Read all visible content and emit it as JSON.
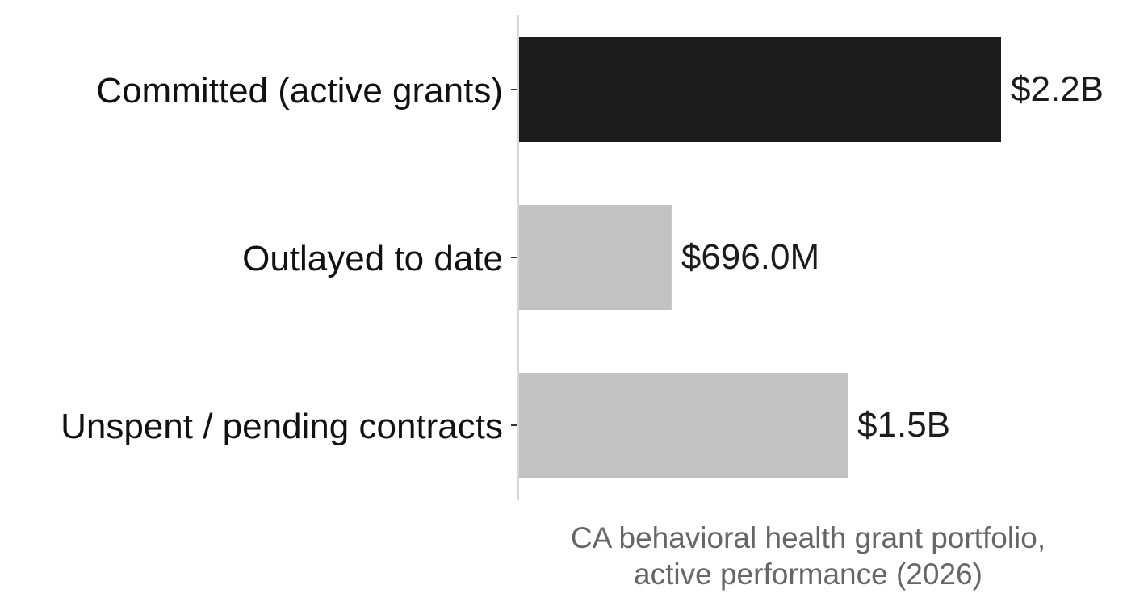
{
  "chart_data": {
    "type": "bar",
    "orientation": "horizontal",
    "categories": [
      "Committed (active grants)",
      "Outlayed to date",
      "Unspent / pending contracts"
    ],
    "values": [
      2.2,
      0.696,
      1.5
    ],
    "value_labels": [
      "$2.2B",
      "$696.0M",
      "$1.5B"
    ],
    "value_unit": "billions USD",
    "colors": [
      "#1c1c1c",
      "#c2c2c2",
      "#c2c2c2"
    ],
    "xlabel_lines": [
      "CA behavioral health grant portfolio,",
      "active performance (2026)"
    ],
    "xlim": [
      0,
      2.2
    ],
    "grid": false,
    "legend": "none"
  }
}
